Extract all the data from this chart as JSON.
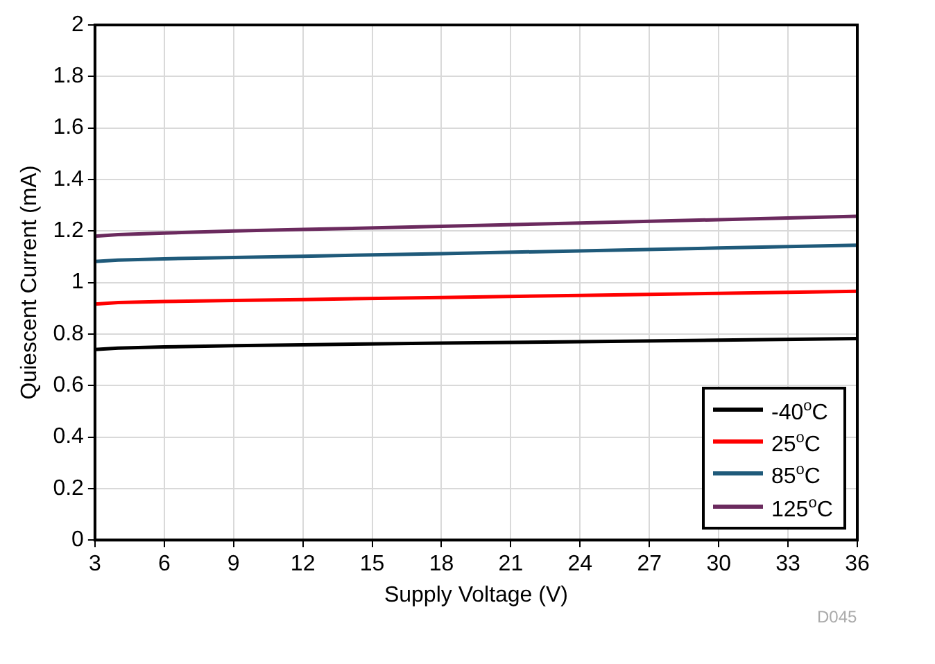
{
  "chart_data": {
    "type": "line",
    "xlabel": "Supply Voltage (V)",
    "ylabel": "Quiescent Current (mA)",
    "x": [
      3,
      4,
      6,
      9,
      12,
      18,
      24,
      30,
      36
    ],
    "series": [
      {
        "name": "-40$^{o}$C",
        "color": "#000000",
        "values": [
          0.74,
          0.745,
          0.75,
          0.755,
          0.758,
          0.765,
          0.77,
          0.776,
          0.782
        ]
      },
      {
        "name": "25$^{o}$C",
        "color": "#ff0000",
        "values": [
          0.916,
          0.922,
          0.926,
          0.93,
          0.934,
          0.942,
          0.95,
          0.958,
          0.966
        ]
      },
      {
        "name": "85$^{o}$C",
        "color": "#1f5a7a",
        "values": [
          1.082,
          1.087,
          1.092,
          1.097,
          1.102,
          1.112,
          1.123,
          1.134,
          1.145
        ]
      },
      {
        "name": "125$^{o}$C",
        "color": "#6b2a5e",
        "values": [
          1.18,
          1.186,
          1.192,
          1.2,
          1.206,
          1.218,
          1.231,
          1.244,
          1.257
        ]
      }
    ],
    "xlim": [
      3,
      36
    ],
    "xticks": [
      3,
      6,
      9,
      12,
      15,
      18,
      21,
      24,
      27,
      30,
      33,
      36
    ],
    "ylim": [
      0,
      2
    ],
    "yticks": [
      0,
      0.2,
      0.4,
      0.6,
      0.8,
      1,
      1.2,
      1.4,
      1.6,
      1.8,
      2
    ],
    "grid": true,
    "legend": "bottom right",
    "marker": "none",
    "line_style": "solid",
    "annotations": [
      "D045"
    ]
  }
}
